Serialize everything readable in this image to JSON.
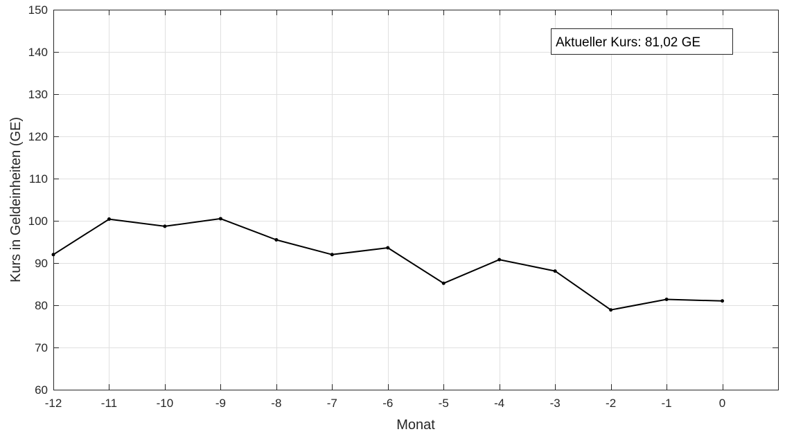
{
  "chart_data": {
    "type": "line",
    "title": "",
    "xlabel": "Monat",
    "ylabel": "Kurs in Geldeinheiten (GE)",
    "xlim": [
      -12,
      1
    ],
    "ylim": [
      60,
      150
    ],
    "x_ticks": [
      -12,
      -11,
      -10,
      -9,
      -8,
      -7,
      -6,
      -5,
      -4,
      -3,
      -2,
      -1,
      0
    ],
    "y_ticks": [
      60,
      70,
      80,
      90,
      100,
      110,
      120,
      130,
      140,
      150
    ],
    "grid": true,
    "series": [
      {
        "x": [
          -12,
          -11,
          -10,
          -9,
          -8,
          -7,
          -6,
          -5,
          -4,
          -3,
          -2,
          -1,
          0
        ],
        "y": [
          92.0,
          100.4,
          98.7,
          100.5,
          95.5,
          92.0,
          93.6,
          85.2,
          90.8,
          88.1,
          78.9,
          81.4,
          81.02
        ],
        "color": "#000000",
        "marker": "dot"
      }
    ],
    "annotation": {
      "text": "Aktueller Kurs: 81,02 GE",
      "placement": "top-right"
    }
  }
}
